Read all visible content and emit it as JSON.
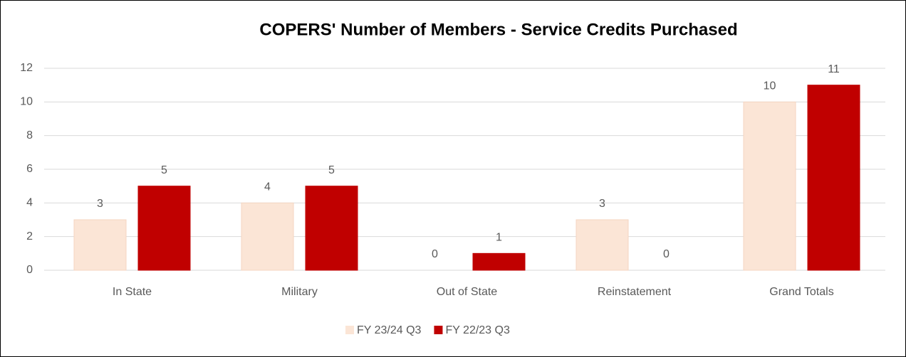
{
  "chart_data": {
    "type": "bar",
    "title": "COPERS' Number of Members - Service Credits Purchased",
    "categories": [
      "In State",
      "Military",
      "Out of State",
      "Reinstatement",
      "Grand Totals"
    ],
    "series": [
      {
        "name": "FY 23/24 Q3",
        "color": "#fbe5d6",
        "values": [
          3,
          4,
          0,
          3,
          10
        ]
      },
      {
        "name": "FY 22/23 Q3",
        "color": "#c00000",
        "values": [
          5,
          5,
          1,
          0,
          11
        ]
      }
    ],
    "ylim": [
      0,
      12
    ],
    "yticks": [
      0,
      2,
      4,
      6,
      8,
      10,
      12
    ],
    "grid": true,
    "legend": "bottom"
  }
}
